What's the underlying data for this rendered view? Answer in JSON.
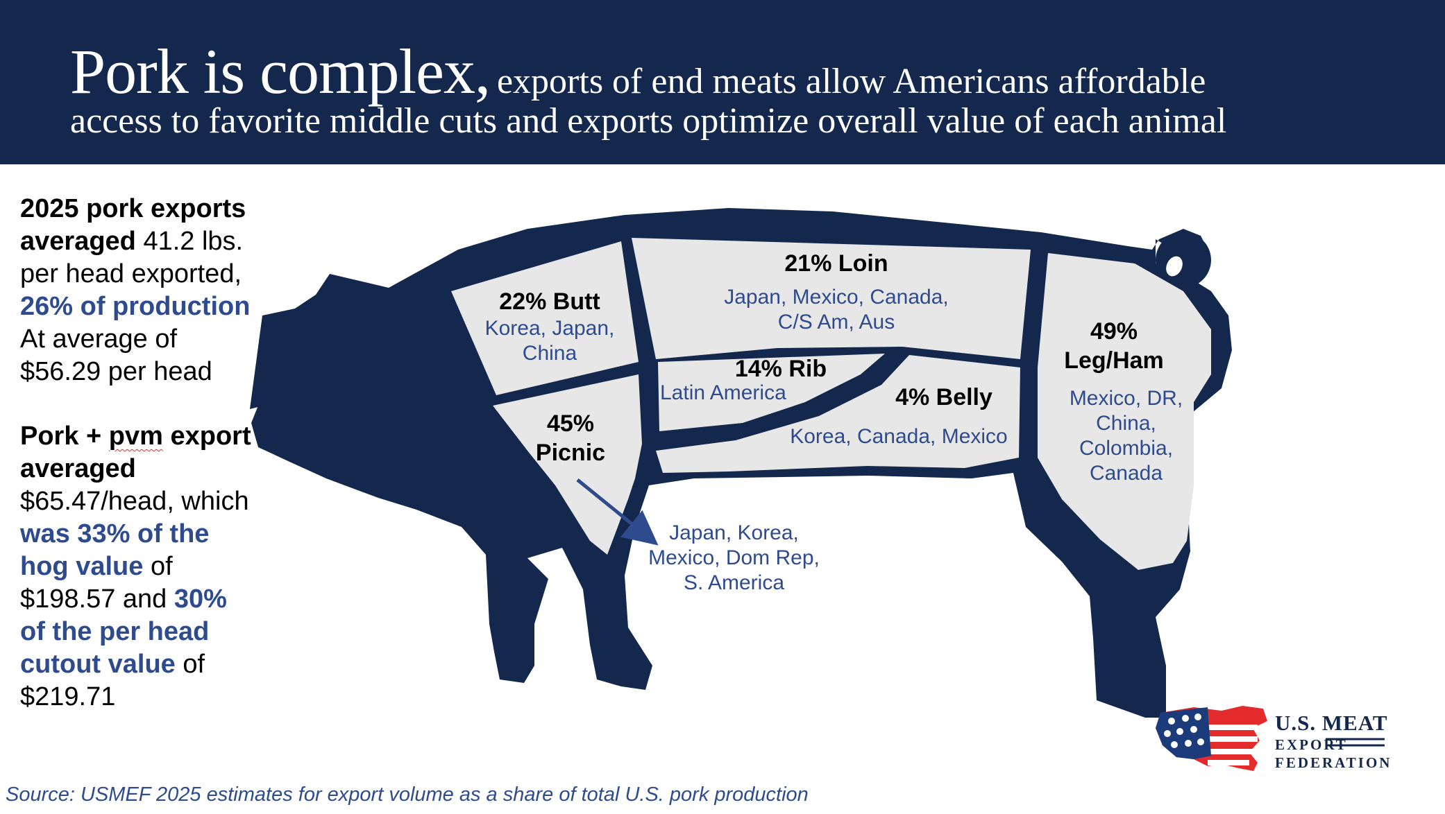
{
  "header": {
    "title_main": "Pork is complex,",
    "title_sub": "exports of end meats allow Americans affordable",
    "title_line2": "access to favorite middle cuts and exports optimize overall value of each animal"
  },
  "sidebar": {
    "p1_bold": "2025 pork exports averaged",
    "p1_text1": "41.2 lbs. per head exported,",
    "p1_hl": "26% of production",
    "p1_text2": "At average of $56.29 per head",
    "p2_bold1": "Pork + ",
    "p2_bold_pvm": "pvm",
    "p2_bold2": " export averaged",
    "p2_text1": "$65.47/head, which",
    "p2_hl1": "was 33% of the hog value",
    "p2_text2": "of $198.57 and",
    "p2_hl2": "30% of the per head cutout value",
    "p2_text3": "of $219.71"
  },
  "cuts": {
    "butt": {
      "title": "22% Butt",
      "markets": "Korea, Japan, China"
    },
    "loin": {
      "title": "21% Loin",
      "markets_l1": "Japan, Mexico, Canada,",
      "markets_l2": "C/S Am, Aus"
    },
    "rib": {
      "title": "14% Rib",
      "markets": "Latin America"
    },
    "belly": {
      "title": "4% Belly",
      "markets": "Korea, Canada, Mexico"
    },
    "leg": {
      "title_l1": "49%",
      "title_l2": "Leg/Ham",
      "markets_l1": "Mexico, DR,",
      "markets_l2": "China,",
      "markets_l3": "Colombia,",
      "markets_l4": "Canada"
    },
    "picnic": {
      "title_l1": "45%",
      "title_l2": "Picnic",
      "markets_l1": "Japan, Korea,",
      "markets_l2": "Mexico, Dom Rep,",
      "markets_l3": "S. America"
    }
  },
  "source": "Source: USMEF 2025 estimates for export volume as a share of total U.S. pork production",
  "logo": {
    "line1": "U.S. MEAT",
    "line2": "EXPORT",
    "line3": "FEDERATION"
  },
  "colors": {
    "navy": "#14284d",
    "cut_fill": "#e7e7e7",
    "accent_blue": "#2e4b8e",
    "logo_red": "#e32b2b"
  }
}
